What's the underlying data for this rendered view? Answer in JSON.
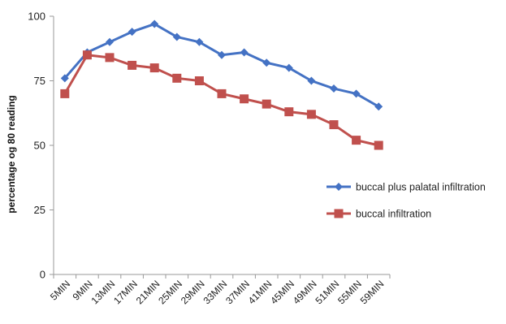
{
  "chart_data": {
    "type": "line",
    "title": "",
    "xlabel": "",
    "ylabel": "percentage og 80 reading",
    "categories": [
      "5MIN",
      "9MIN",
      "13MIN",
      "17MIN",
      "21MIN",
      "25MIN",
      "29MIN",
      "33MIN",
      "37MIN",
      "41MIN",
      "45MIN",
      "49MIN",
      "51MIN",
      "55MIN",
      "59MIN"
    ],
    "ylim": [
      0,
      100
    ],
    "yticks": [
      0,
      25,
      50,
      75,
      100
    ],
    "grid": false,
    "legend_position": "right",
    "series": [
      {
        "name": "buccal plus palatal infiltration",
        "color": "#4472C4",
        "marker": "diamond",
        "values": [
          76,
          86,
          90,
          94,
          97,
          92,
          90,
          85,
          86,
          82,
          80,
          75,
          72,
          70,
          65
        ]
      },
      {
        "name": "buccal infiltration",
        "color": "#C0504D",
        "marker": "square",
        "values": [
          70,
          85,
          84,
          81,
          80,
          76,
          75,
          70,
          68,
          66,
          63,
          62,
          58,
          52,
          50
        ]
      }
    ]
  }
}
